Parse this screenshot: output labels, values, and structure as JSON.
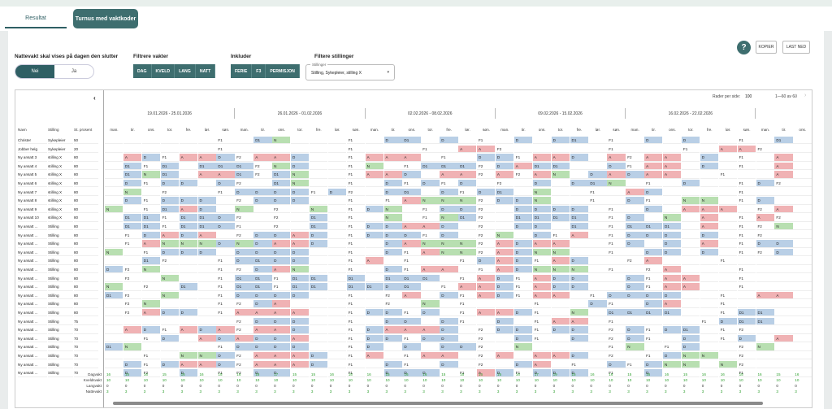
{
  "tabs": [
    "Resultat",
    "Turnus med vaktkoder"
  ],
  "nattevakt": {
    "label": "Nattevakt skal vises på dagen den slutter",
    "options": [
      "Nei",
      "Ja"
    ],
    "selected": "Nei"
  },
  "filtre_vakter": {
    "label": "Filtrere vakter",
    "buttons": [
      "DAG",
      "KVELD",
      "LANG",
      "NATT"
    ]
  },
  "inkluder": {
    "label": "Inkluder",
    "buttons": [
      "FERIE",
      "F3",
      "PERMISJON"
    ]
  },
  "filtere_stillinger": {
    "label": "Filtere stillinger",
    "caption": "Stillinger",
    "value": "Stilling, Sykepleier, stilling X"
  },
  "toolbar": {
    "help": "?",
    "kopier": "KOPIER",
    "last_ned": "LAST NED"
  },
  "pager": {
    "rows_label": "Rader per side:",
    "rows_value": "100",
    "range": "1—60 av 60",
    "prev": "‹",
    "next": "›"
  },
  "columns": {
    "navn": "Navn",
    "stilling": "Stilling",
    "prosent": "St. prosent"
  },
  "weeks": [
    "19.01.2026 - 25.01.2026",
    "26.01.2026 - 01.02.2026",
    "02.02.2026 - 08.02.2026",
    "09.02.2026 - 15.02.2026",
    "16.02.2026 - 22.02.2026",
    "23.02.20"
  ],
  "days": [
    "man.",
    "tir.",
    "ons.",
    "tor.",
    "fre.",
    "lør.",
    "søn."
  ],
  "employees": [
    [
      "Christer",
      "Sykepleier",
      "50"
    ],
    [
      "Jobber helg",
      "Sykepleier",
      "20"
    ],
    [
      "Ny ansatt 3",
      "stilling X",
      "80"
    ],
    [
      "Ny ansatt 4",
      "stilling X",
      "80"
    ],
    [
      "Ny ansatt 5",
      "stilling X",
      "80"
    ],
    [
      "Ny ansatt 6",
      "stilling X",
      "80"
    ],
    [
      "Ny ansatt 7",
      "stilling X",
      "80"
    ],
    [
      "Ny ansatt 8",
      "stilling X",
      "80"
    ],
    [
      "Ny ansatt 9",
      "stilling X",
      "80"
    ],
    [
      "Ny ansatt 10",
      "stilling X",
      "80"
    ],
    [
      "Ny ansatt ...",
      "Stilling",
      "80"
    ],
    [
      "Ny ansatt ...",
      "Stilling",
      "80"
    ],
    [
      "Ny ansatt ...",
      "Stilling",
      "80"
    ],
    [
      "Ny ansatt ...",
      "Stilling",
      "80"
    ],
    [
      "Ny ansatt ...",
      "Stilling",
      "80"
    ],
    [
      "Ny ansatt ...",
      "Stilling",
      "80"
    ],
    [
      "Ny ansatt ...",
      "Stilling",
      "80"
    ],
    [
      "Ny ansatt ...",
      "Stilling",
      "80"
    ],
    [
      "Ny ansatt ...",
      "Stilling",
      "80"
    ],
    [
      "Ny ansatt ...",
      "Stilling",
      "80"
    ],
    [
      "Ny ansatt ...",
      "Stilling",
      "80"
    ],
    [
      "Ny ansatt ...",
      "Stilling",
      "75"
    ],
    [
      "Ny ansatt ...",
      "Stilling",
      "70"
    ],
    [
      "Ny ansatt ...",
      "Stilling",
      "70"
    ],
    [
      "Ny ansatt ...",
      "Stilling",
      "70"
    ],
    [
      "Ny ansatt ...",
      "Stilling",
      "70"
    ],
    [
      "Ny ansatt ...",
      "Stilling",
      "70"
    ],
    [
      "Ny ansatt ...",
      "Stilling",
      "70"
    ]
  ],
  "schedule": [
    [
      "",
      "",
      "",
      "",
      "",
      "",
      "F1",
      "",
      "D1",
      "N",
      "",
      "",
      "",
      "F1",
      "",
      "D",
      "D1",
      "",
      "D",
      "",
      "F1",
      "",
      "D",
      "",
      "D",
      "D1",
      "",
      "F1",
      "",
      "D",
      "",
      "D",
      "",
      "",
      "F1",
      "",
      "D1"
    ],
    [
      "",
      "",
      "",
      "",
      "",
      "",
      "F1",
      "",
      "",
      "",
      "",
      "",
      "",
      "F1",
      "",
      "",
      "",
      "F1",
      "",
      "A",
      "A",
      "F2",
      "",
      "",
      "",
      "",
      "",
      "F1",
      "",
      "",
      "",
      "F1",
      "",
      "A",
      "A",
      "F2",
      ""
    ],
    [
      "",
      "A",
      "D",
      "F1",
      "A",
      "A",
      "D",
      "F2",
      "A",
      "A",
      "D",
      "",
      "",
      "F1",
      "A",
      "A",
      "A",
      "",
      "F1",
      "",
      "D",
      "D",
      "F1",
      "A",
      "A",
      "D",
      "",
      "A",
      "F2",
      "A",
      "A",
      "",
      "D",
      "",
      "F1",
      "",
      "A"
    ],
    [
      "",
      "D1",
      "F1",
      "D1",
      "",
      "D1",
      "D1",
      "D1",
      "F2",
      "N",
      "D",
      "",
      "",
      "F1",
      "N",
      "",
      "F1",
      "D1",
      "D1",
      "D1",
      "F2",
      "D",
      "A",
      "D1",
      "D1",
      "",
      "",
      "D",
      "F1",
      "A",
      "A",
      "",
      "D",
      "",
      "F1",
      "",
      "A"
    ],
    [
      "",
      "D1",
      "N",
      "D1",
      "",
      "A",
      "A",
      "D1",
      "F2",
      "D1",
      "N",
      "",
      "",
      "F1",
      "A",
      "A",
      "D",
      "",
      "A",
      "A",
      "F2",
      "A",
      "F2",
      "A",
      "N",
      "",
      "D",
      "A",
      "D",
      "A",
      "A",
      "",
      "",
      "F1",
      "",
      "",
      "A"
    ],
    [
      "",
      "D",
      "F1",
      "D",
      "D",
      "",
      "D",
      "F2",
      "",
      "D1",
      "N",
      "",
      "",
      "F1",
      "",
      "D",
      "F1",
      "D",
      "F1",
      "D",
      "",
      "F2",
      "",
      "D",
      "",
      "D",
      "D1",
      "N",
      "",
      "F1",
      "",
      "D",
      "",
      "",
      "F1",
      "D",
      "F2"
    ],
    [
      "",
      "N",
      "",
      "F2",
      "",
      "",
      "F1",
      "D",
      "D",
      "D",
      "D",
      "F1",
      "D",
      "F2",
      "",
      "D",
      "D1",
      "",
      "D",
      "F1",
      "D",
      "D1",
      "",
      "N",
      "",
      "",
      "F1",
      "",
      "A",
      "D",
      "",
      "",
      "",
      "",
      "F1",
      "",
      ""
    ],
    [
      "",
      "D",
      "F1",
      "D",
      "D",
      "D",
      "",
      "F2",
      "D",
      "D",
      "D",
      "",
      "",
      "F1",
      "",
      "F1",
      "A",
      "N",
      "N",
      "N",
      "F2",
      "D",
      "D",
      "N",
      "",
      "",
      "F1",
      "",
      "D",
      "F1",
      "",
      "N",
      "N",
      "",
      "F1",
      "D",
      ""
    ],
    [
      "N",
      "",
      "F1",
      "D1",
      "A",
      "D",
      "",
      "N",
      "",
      "F2",
      "",
      "N",
      "",
      "F1",
      "D",
      "N",
      "",
      "F1",
      "D",
      "D",
      "F2",
      "",
      "D",
      "D",
      "D",
      "D",
      "",
      "F1",
      "",
      "D",
      "",
      "A",
      "A",
      "A",
      "",
      "F2",
      "A"
    ],
    [
      "",
      "D1",
      "D1",
      "F1",
      "D1",
      "D1",
      "D",
      "F2",
      "",
      "F2",
      "",
      "D1",
      "",
      "F1",
      "",
      "N",
      "",
      "F1",
      "N",
      "D1",
      "F2",
      "",
      "D1",
      "D1",
      "D1",
      "D1",
      "",
      "F1",
      "D",
      "",
      "N",
      "",
      "A",
      "",
      "F1",
      "A",
      "F2"
    ],
    [
      "",
      "D1",
      "D1",
      "F1",
      "D1",
      "D1",
      "D",
      "F1",
      "",
      "F2",
      "",
      "D1",
      "",
      "F1",
      "D",
      "D",
      "A",
      "A",
      "D",
      "",
      "F2",
      "",
      "D",
      "D",
      "",
      "D1",
      "",
      "F1",
      "D1",
      "D1",
      "D1",
      "",
      "A",
      "",
      "F1",
      "F2",
      "N"
    ],
    [
      "",
      "F1",
      "D",
      "A",
      "D",
      "A",
      "",
      "F2",
      "D",
      "D",
      "A",
      "D",
      "",
      "F1",
      "D",
      "D",
      "D",
      "F1",
      "D",
      "",
      "F2",
      "N",
      "",
      "D",
      "F1",
      "A",
      "",
      "F1",
      "D",
      "D",
      "D",
      "",
      "D",
      "",
      "F1",
      "F2",
      ""
    ],
    [
      "",
      "F1",
      "A",
      "N",
      "N",
      "N",
      "D",
      "N",
      "D",
      "A",
      "A",
      "D",
      "",
      "F1",
      "",
      "D",
      "A",
      "N",
      "N",
      "N",
      "F2",
      "A",
      "D",
      "A",
      "A",
      "",
      "",
      "F1",
      "D",
      "",
      "D",
      "",
      "A",
      "",
      "F1",
      "D",
      "D"
    ],
    [
      "N",
      "",
      "F1",
      "D",
      "D",
      "D",
      "",
      "D",
      "D",
      "D",
      "D",
      "",
      "",
      "F1",
      "",
      "D",
      "F1",
      "A",
      "N",
      "N",
      "F2",
      "A",
      "D",
      "N",
      "N",
      "",
      "",
      "F1",
      "",
      "D",
      "D",
      "",
      "D",
      "",
      "F1",
      "F2",
      "D"
    ],
    [
      "",
      "",
      "D1",
      "F2",
      "",
      "",
      "F1",
      "D",
      "D1",
      "D",
      "D",
      "",
      "",
      "F1",
      "A",
      "",
      "F1",
      "",
      "",
      "F1",
      "D",
      "A",
      "D",
      "F1",
      "A",
      "D",
      "",
      "",
      "F2",
      "A",
      "",
      "",
      "",
      "F1",
      "",
      "",
      ""
    ],
    [
      "D",
      "F2",
      "N",
      "",
      "",
      "",
      "F1",
      "F2",
      "D",
      "A",
      "N",
      "",
      "",
      "F1",
      "",
      "D",
      "F1",
      "A",
      "A",
      "",
      "F1",
      "A",
      "D",
      "N",
      "N",
      "N",
      "",
      "F1",
      "",
      "F2",
      "A",
      "",
      "",
      "",
      "F1",
      "",
      ""
    ],
    [
      "",
      "F2",
      "",
      "N",
      "",
      "",
      "F1",
      "D1",
      "D1",
      "F1",
      "D1",
      "D1",
      "",
      "D1",
      "",
      "D1",
      "D1",
      "D1",
      "",
      "F1",
      "A",
      "D",
      "F1",
      "A",
      "D",
      "D",
      "",
      "",
      "D",
      "F1",
      "A",
      "A",
      "",
      "",
      "F1",
      "",
      ""
    ],
    [
      "N",
      "",
      "F2",
      "",
      "D1",
      "",
      "F1",
      "D1",
      "D1",
      "F1",
      "D1",
      "D1",
      "",
      "D1",
      "D1",
      "D",
      "D1",
      "",
      "F1",
      "A",
      "A",
      "D",
      "F1",
      "A",
      "D",
      "D",
      "",
      "",
      "D",
      "F1",
      "A",
      "A",
      "",
      "",
      "F1",
      "",
      ""
    ],
    [
      "D1",
      "F2",
      "",
      "N",
      "",
      "",
      "F1",
      "D",
      "D",
      "D",
      "D",
      "",
      "",
      "F1",
      "",
      "F2",
      "A",
      "",
      "D",
      "F1",
      "A",
      "D",
      "F1",
      "A",
      "A",
      "",
      "F1",
      "D",
      "D",
      "D",
      "D",
      "",
      "",
      "F1",
      "",
      "A",
      "A"
    ],
    [
      "",
      "F2",
      "N",
      "",
      "",
      "",
      "F1",
      "F2",
      "D",
      "A",
      "",
      "",
      "",
      "F1",
      "",
      "F2",
      "",
      "N",
      "",
      "F1",
      "",
      "",
      "",
      "F1",
      "",
      "",
      "D",
      "F1",
      "",
      "D",
      "A",
      "",
      "",
      "F1",
      "",
      "",
      ""
    ],
    [
      "",
      "F2",
      "A",
      "D",
      "D",
      "",
      "F1",
      "A",
      "A",
      "A",
      "A",
      "",
      "",
      "F1",
      "D",
      "D",
      "F1",
      "D",
      "",
      "F1",
      "A",
      "A",
      "D",
      "F1",
      "",
      "N",
      "",
      "D1",
      "D1",
      "D1",
      "D1",
      "",
      "",
      "F1",
      "D1",
      "D1",
      ""
    ],
    [
      "",
      "",
      "",
      "",
      "",
      "",
      "",
      "F2",
      "D",
      "D",
      "D",
      "",
      "",
      "F1",
      "",
      "D",
      "D",
      "",
      "D",
      "F1",
      "",
      "D",
      "",
      "F1",
      "A",
      "A",
      "",
      "F1",
      "",
      "",
      "",
      "",
      "F1",
      "D",
      "D1",
      "D1",
      ""
    ],
    [
      "",
      "A",
      "D",
      "F1",
      "A",
      "D",
      "A",
      "F2",
      "A",
      "A",
      "D",
      "",
      "",
      "F1",
      "D",
      "A",
      "A",
      "A",
      "D",
      "",
      "F2",
      "D",
      "D",
      "F1",
      "D",
      "D",
      "",
      "F2",
      "D",
      "F1",
      "D",
      "D1",
      "",
      "F1",
      "F2",
      "",
      ""
    ],
    [
      "",
      "",
      "F1",
      "D",
      "",
      "A",
      "D",
      "A",
      "D",
      "D",
      "A",
      "",
      "",
      "F1",
      "D",
      "D",
      "F1",
      "D",
      "D",
      "",
      "F2",
      "",
      "D",
      "F1",
      "",
      "D",
      "",
      "F2",
      "D",
      "F1",
      "",
      "D",
      "",
      "F1",
      "D",
      "",
      "A"
    ],
    [
      "D1",
      "N",
      "",
      "",
      "",
      "",
      "F1",
      "D",
      "D",
      "D",
      "D",
      "",
      "",
      "F1",
      "D",
      "",
      "D",
      "",
      "D",
      "D",
      "F2",
      "",
      "N",
      "",
      "",
      "",
      "",
      "F1",
      "N",
      "",
      "F1",
      "D",
      "",
      "",
      "F2",
      "N",
      ""
    ],
    [
      "",
      "",
      "F1",
      "",
      "N",
      "N",
      "D",
      "F2",
      "A",
      "A",
      "A",
      "D",
      "",
      "F1",
      "A",
      "",
      "F1",
      "A",
      "A",
      "",
      "F2",
      "A",
      "",
      "A",
      "A",
      "D",
      "",
      "F2",
      "",
      "F1",
      "D",
      "N",
      "N",
      "",
      "F2",
      "",
      ""
    ],
    [
      "",
      "D",
      "F1",
      "D",
      "A",
      "A",
      "D",
      "F2",
      "A",
      "A",
      "A",
      "D",
      "",
      "F1",
      "",
      "D",
      "F1",
      "",
      "D",
      "",
      "F2",
      "",
      "D",
      "A",
      "",
      "F1",
      "",
      "D",
      "F1",
      "D",
      "N",
      "N",
      "",
      "N",
      "F2",
      "",
      ""
    ],
    [
      "",
      "D",
      "F2",
      "",
      "D",
      "",
      "F1",
      "F2",
      "D",
      "D",
      "",
      "",
      "",
      "F1",
      "",
      "D",
      "D",
      "D",
      "",
      "F1",
      "A",
      "D",
      "F1",
      "D",
      "D",
      "D",
      "",
      "F1",
      "",
      "D",
      "",
      "",
      "",
      "",
      "F1",
      "",
      ""
    ]
  ],
  "totals": [
    {
      "label": "Dagvakt",
      "color": "#2a9d2a",
      "values": [
        "16",
        "15",
        "16",
        "15",
        "16",
        "16",
        "15",
        "16",
        "18",
        "17",
        "15",
        "15",
        "16",
        "15",
        "16",
        "15",
        "16",
        "16",
        "15",
        "15",
        "16",
        "15",
        "16",
        "17",
        "19",
        "15",
        "16",
        "16",
        "15",
        "16",
        "16",
        "15",
        "16",
        "16",
        "15",
        "16",
        "15",
        "16"
      ]
    },
    {
      "label": "Kveldsvakt",
      "color": "#2a9d2a",
      "values": [
        "10",
        "10",
        "10",
        "10",
        "10",
        "10",
        "10",
        "10",
        "10",
        "10",
        "10",
        "10",
        "10",
        "10",
        "10",
        "10",
        "10",
        "10",
        "10",
        "10",
        "10",
        "10",
        "10",
        "10",
        "10",
        "10",
        "10",
        "10",
        "10",
        "10",
        "10",
        "10",
        "10",
        "10",
        "10",
        "10",
        "10",
        "10"
      ]
    },
    {
      "label": "Langvakt",
      "color": "#333333",
      "values": [
        "0",
        "0",
        "0",
        "0",
        "0",
        "0",
        "0",
        "0",
        "0",
        "0",
        "0",
        "0",
        "0",
        "0",
        "0",
        "0",
        "0",
        "0",
        "0",
        "0",
        "0",
        "0",
        "0",
        "0",
        "0",
        "0",
        "0",
        "0",
        "0",
        "0",
        "0",
        "0",
        "0",
        "0",
        "0",
        "0",
        "0",
        "0"
      ]
    },
    {
      "label": "Nattevakt",
      "color": "#2a9d2a",
      "values": [
        "3",
        "3",
        "3",
        "3",
        "3",
        "3",
        "3",
        "3",
        "3",
        "3",
        "3",
        "3",
        "3",
        "3",
        "3",
        "3",
        "3",
        "3",
        "3",
        "3",
        "3",
        "3",
        "3",
        "3",
        "3",
        "3",
        "3",
        "3",
        "3",
        "3",
        "3",
        "3",
        "3",
        "3",
        "3",
        "3",
        "3",
        "3"
      ]
    }
  ],
  "colors": {
    "D": "#b9cfe6",
    "D1": "#b9cfe6",
    "A": "#f0b2b4",
    "N": "#b8dfb1",
    "F1": "#ffffff",
    "F2": "#ffffff",
    "accent": "#3e6e6f"
  }
}
